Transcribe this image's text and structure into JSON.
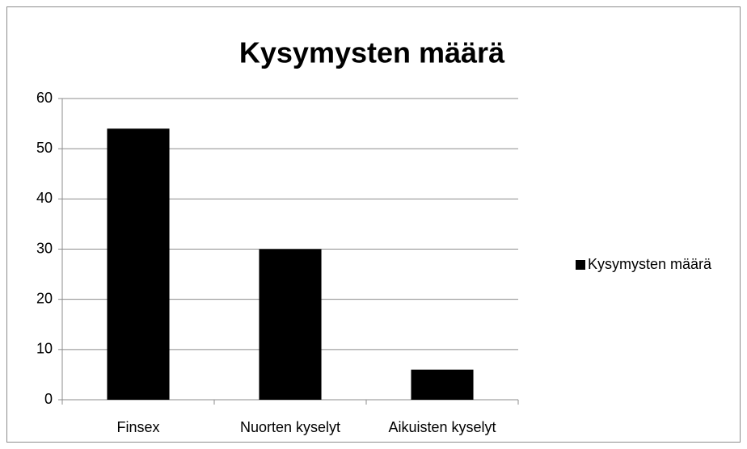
{
  "chart_data": {
    "type": "bar",
    "title": "Kysymysten määrä",
    "categories": [
      "Finsex",
      "Nuorten kyselyt",
      "Aikuisten kyselyt"
    ],
    "series": [
      {
        "name": "Kysymysten määrä",
        "color": "#000000",
        "values": [
          54,
          30,
          6
        ]
      }
    ],
    "ylim": [
      0,
      60
    ],
    "yticks": [
      0,
      10,
      20,
      30,
      40,
      50,
      60
    ],
    "grid": true,
    "legend": "right"
  }
}
